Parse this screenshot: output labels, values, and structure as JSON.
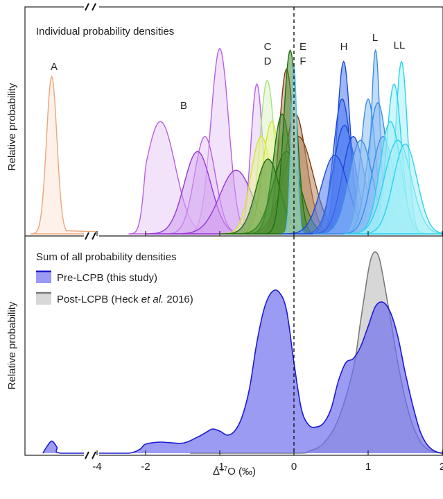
{
  "chart_data": [
    {
      "type": "area",
      "title": "Individual probability densities",
      "ylabel": "Relative probability",
      "xlabel": "",
      "xlim": [
        -4.5,
        2
      ],
      "broken_axis": {
        "hidden_between": [
          -4.0,
          -3.6
        ]
      },
      "reference_line": {
        "x": 0,
        "style": "dashed"
      },
      "annotations": [
        {
          "id": "a",
          "label": "A",
          "x": -4.2
        },
        {
          "id": "b",
          "label": "B",
          "x": -1.6
        },
        {
          "id": "c",
          "label": "C",
          "x": -0.38
        },
        {
          "id": "d",
          "label": "D",
          "x": -0.38
        },
        {
          "id": "e",
          "label": "E",
          "x": 0.12
        },
        {
          "id": "f",
          "label": "F",
          "x": 0.12
        },
        {
          "id": "h",
          "label": "H",
          "x": 0.67
        },
        {
          "id": "l",
          "label": "L",
          "x": 1.1
        },
        {
          "id": "ll",
          "label": "LL",
          "x": 1.42
        }
      ],
      "groups": [
        {
          "group": "A",
          "color": "#e9a77a",
          "fill": "#fbe6d7",
          "curves": [
            [
              -4.2,
              0.07,
              0.84
            ]
          ]
        },
        {
          "group": "B",
          "color": "#b65fe6",
          "fill": "#e8ccf6",
          "curves": [
            [
              -1.8,
              0.2,
              0.6
            ],
            [
              -1.0,
              0.12,
              0.99
            ],
            [
              -1.2,
              0.14,
              0.52
            ],
            [
              -0.5,
              0.08,
              0.8
            ]
          ]
        },
        {
          "group": "B2",
          "color": "#9637d6",
          "fill": "#cf9cef",
          "curves": [
            [
              -1.3,
              0.18,
              0.44
            ],
            [
              -0.78,
              0.22,
              0.34
            ]
          ]
        },
        {
          "group": "C",
          "color": "#a6e27d",
          "fill": "#dcf2c7",
          "curves": [
            [
              -0.36,
              0.1,
              0.82
            ],
            [
              -0.12,
              0.16,
              0.54
            ]
          ]
        },
        {
          "group": "D",
          "color": "#cfe638",
          "fill": "#ecf497",
          "curves": [
            [
              -0.44,
              0.14,
              0.52
            ],
            [
              -0.3,
              0.12,
              0.6
            ]
          ]
        },
        {
          "group": "E",
          "color": "#7a3b12",
          "fill": "#b7875c",
          "curves": [
            [
              -0.1,
              0.1,
              0.88
            ],
            [
              0.02,
              0.15,
              0.64
            ],
            [
              0.06,
              0.2,
              0.52
            ]
          ]
        },
        {
          "group": "E2",
          "color": "#1f6e14",
          "fill": "#4b9237",
          "curves": [
            [
              -0.16,
              0.12,
              0.64
            ],
            [
              -0.1,
              0.18,
              0.44
            ],
            [
              -0.35,
              0.16,
              0.4
            ],
            [
              -0.05,
              0.09,
              0.98
            ]
          ]
        },
        {
          "group": "F",
          "color": "#5fc0e8",
          "fill": "#c4ecf8",
          "curves": [
            [
              0.0,
              0.04,
              0.9
            ]
          ]
        },
        {
          "group": "H",
          "color": "#1a47d8",
          "fill": "#4d7bf0",
          "curves": [
            [
              0.67,
              0.09,
              0.92
            ],
            [
              0.65,
              0.12,
              0.72
            ],
            [
              0.68,
              0.15,
              0.58
            ],
            [
              0.8,
              0.15,
              0.52
            ],
            [
              0.55,
              0.18,
              0.42
            ]
          ]
        },
        {
          "group": "L",
          "color": "#3b8de6",
          "fill": "#8cc0f4",
          "curves": [
            [
              1.1,
              0.06,
              0.98
            ],
            [
              1.0,
              0.1,
              0.72
            ],
            [
              1.13,
              0.13,
              0.7
            ],
            [
              0.9,
              0.16,
              0.5
            ],
            [
              1.2,
              0.15,
              0.52
            ]
          ]
        },
        {
          "group": "LL",
          "color": "#2ad3ec",
          "fill": "#a6eef8",
          "curves": [
            [
              1.45,
              0.08,
              0.92
            ],
            [
              1.35,
              0.1,
              0.8
            ],
            [
              1.3,
              0.14,
              0.6
            ],
            [
              1.4,
              0.18,
              0.5
            ],
            [
              1.5,
              0.16,
              0.48
            ]
          ]
        }
      ]
    },
    {
      "type": "area",
      "title": "Sum of all probability densities",
      "ylabel": "Relative probability",
      "xlabel": "Δ17O (‰)",
      "xlim": [
        -4.5,
        2
      ],
      "ticks": [
        -4,
        -2,
        -1,
        0,
        1,
        2
      ],
      "tick_labels": [
        "-4",
        "-2",
        "-1",
        "0",
        "1",
        "2"
      ],
      "broken_axis": {
        "hidden_between": [
          -4.0,
          -3.6
        ]
      },
      "reference_line": {
        "x": 0,
        "style": "dashed"
      },
      "legend": {
        "placement": "top-left",
        "entries": [
          {
            "id": "pre",
            "name_main": "Pre-LCPB (this study)",
            "name_italic": "",
            "name_tail": ""
          },
          {
            "id": "post",
            "name_main": "Post-LCPB (Heck ",
            "name_italic": "et al.",
            "name_tail": " 2016)"
          }
        ]
      },
      "series": [
        {
          "id": "post",
          "line_color": "#7a7a7a",
          "fill_color": "#d0d0d0",
          "x": [
            -1.4,
            0.0,
            0.2,
            0.4,
            0.6,
            0.8,
            0.9,
            1.0,
            1.05,
            1.1,
            1.15,
            1.2,
            1.3,
            1.4,
            1.5,
            1.6,
            1.7,
            1.8,
            1.9,
            2.0
          ],
          "y": [
            0.0,
            0.0,
            0.01,
            0.05,
            0.17,
            0.42,
            0.66,
            0.9,
            0.98,
            1.0,
            0.97,
            0.88,
            0.67,
            0.45,
            0.27,
            0.14,
            0.06,
            0.02,
            0.005,
            0.0
          ]
        },
        {
          "id": "pre",
          "line_color": "#1b1bd0",
          "fill_color": "#7070f0",
          "x": [
            -4.32,
            -4.27,
            -4.2,
            -4.13,
            -4.08,
            -3.4,
            -2.6,
            -2.2,
            -2.0,
            -1.8,
            -1.5,
            -1.3,
            -1.2,
            -1.1,
            -1.0,
            -0.9,
            -0.8,
            -0.7,
            -0.6,
            -0.5,
            -0.4,
            -0.3,
            -0.2,
            -0.1,
            0.0,
            0.1,
            0.2,
            0.3,
            0.4,
            0.5,
            0.6,
            0.7,
            0.8,
            0.9,
            1.0,
            1.1,
            1.2,
            1.3,
            1.4,
            1.5,
            1.6,
            1.7,
            1.8,
            1.9,
            2.0
          ],
          "y": [
            0.0,
            0.03,
            0.06,
            0.03,
            0.0,
            0.0,
            0.0,
            0.02,
            0.045,
            0.055,
            0.05,
            0.08,
            0.1,
            0.12,
            0.11,
            0.09,
            0.11,
            0.18,
            0.32,
            0.55,
            0.72,
            0.8,
            0.8,
            0.71,
            0.45,
            0.22,
            0.14,
            0.13,
            0.15,
            0.22,
            0.36,
            0.45,
            0.47,
            0.53,
            0.63,
            0.73,
            0.75,
            0.7,
            0.58,
            0.4,
            0.24,
            0.11,
            0.04,
            0.01,
            0.0
          ]
        }
      ]
    }
  ]
}
